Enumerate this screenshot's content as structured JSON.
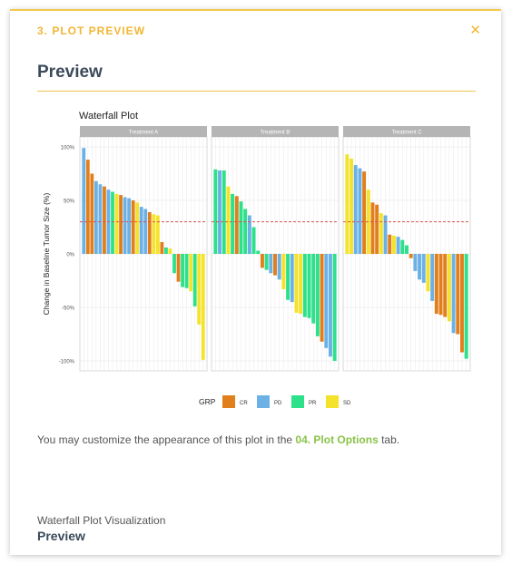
{
  "panel": {
    "header": "3. PLOT PREVIEW",
    "close_icon": "x-close-icon",
    "title": "Preview"
  },
  "message": {
    "before": "You may customize the appearance of this plot in the ",
    "link": "04. Plot Options",
    "after": " tab."
  },
  "footer": {
    "caption": "Waterfall Plot Visualization",
    "title": "Preview"
  },
  "chart_data": {
    "type": "bar",
    "title": "Waterfall Plot",
    "ylabel": "Change in Baseline Tumor Size (%)",
    "xlabel": "",
    "ylim": [
      -100,
      100
    ],
    "yticks": [
      100,
      50,
      0,
      -50,
      -100
    ],
    "ytick_labels": [
      "100%",
      "50%",
      "0%",
      "-50%",
      "-100%"
    ],
    "reference_line": 30,
    "grid": true,
    "legend": {
      "title": "GRP",
      "position": "bottom",
      "entries": [
        {
          "name": "CR",
          "color": "#e07f1c"
        },
        {
          "name": "PD",
          "color": "#6cb1e6"
        },
        {
          "name": "PR",
          "color": "#2de08a"
        },
        {
          "name": "SD",
          "color": "#f5e22a"
        }
      ]
    },
    "colors": {
      "CR": "#e07f1c",
      "PD": "#6cb1e6",
      "PR": "#2de08a",
      "SD": "#f5e22a",
      "reference": "#d9534f",
      "strip": "#b5b5b5"
    },
    "panels": [
      {
        "name": "Treatment A",
        "bars": [
          {
            "value": 99,
            "grp": "PD"
          },
          {
            "value": 88,
            "grp": "CR"
          },
          {
            "value": 75,
            "grp": "CR"
          },
          {
            "value": 68,
            "grp": "PD"
          },
          {
            "value": 65,
            "grp": "PD"
          },
          {
            "value": 63,
            "grp": "CR"
          },
          {
            "value": 60,
            "grp": "PD"
          },
          {
            "value": 58,
            "grp": "PR"
          },
          {
            "value": 56,
            "grp": "SD"
          },
          {
            "value": 55,
            "grp": "CR"
          },
          {
            "value": 53,
            "grp": "PD"
          },
          {
            "value": 52,
            "grp": "PD"
          },
          {
            "value": 50,
            "grp": "CR"
          },
          {
            "value": 48,
            "grp": "SD"
          },
          {
            "value": 44,
            "grp": "PD"
          },
          {
            "value": 42,
            "grp": "PD"
          },
          {
            "value": 39,
            "grp": "CR"
          },
          {
            "value": 37,
            "grp": "SD"
          },
          {
            "value": 36,
            "grp": "SD"
          },
          {
            "value": 11,
            "grp": "CR"
          },
          {
            "value": 6,
            "grp": "PR"
          },
          {
            "value": 5,
            "grp": "SD"
          },
          {
            "value": -18,
            "grp": "PR"
          },
          {
            "value": -26,
            "grp": "CR"
          },
          {
            "value": -31,
            "grp": "PR"
          },
          {
            "value": -32,
            "grp": "PR"
          },
          {
            "value": -35,
            "grp": "SD"
          },
          {
            "value": -49,
            "grp": "PR"
          },
          {
            "value": -66,
            "grp": "SD"
          },
          {
            "value": -99,
            "grp": "SD"
          }
        ]
      },
      {
        "name": "Treatment B",
        "bars": [
          {
            "value": 79,
            "grp": "PR"
          },
          {
            "value": 78,
            "grp": "PD"
          },
          {
            "value": 78,
            "grp": "PR"
          },
          {
            "value": 63,
            "grp": "SD"
          },
          {
            "value": 56,
            "grp": "PR"
          },
          {
            "value": 54,
            "grp": "CR"
          },
          {
            "value": 49,
            "grp": "PR"
          },
          {
            "value": 42,
            "grp": "PR"
          },
          {
            "value": 36,
            "grp": "PD"
          },
          {
            "value": 25,
            "grp": "PR"
          },
          {
            "value": 3,
            "grp": "PR"
          },
          {
            "value": -13,
            "grp": "CR"
          },
          {
            "value": -15,
            "grp": "PR"
          },
          {
            "value": -18,
            "grp": "PD"
          },
          {
            "value": -20,
            "grp": "CR"
          },
          {
            "value": -24,
            "grp": "PD"
          },
          {
            "value": -33,
            "grp": "SD"
          },
          {
            "value": -43,
            "grp": "PR"
          },
          {
            "value": -45,
            "grp": "PD"
          },
          {
            "value": -55,
            "grp": "SD"
          },
          {
            "value": -56,
            "grp": "SD"
          },
          {
            "value": -59,
            "grp": "PR"
          },
          {
            "value": -60,
            "grp": "PR"
          },
          {
            "value": -65,
            "grp": "PR"
          },
          {
            "value": -77,
            "grp": "PR"
          },
          {
            "value": -82,
            "grp": "CR"
          },
          {
            "value": -88,
            "grp": "PD"
          },
          {
            "value": -96,
            "grp": "PD"
          },
          {
            "value": -100,
            "grp": "PR"
          }
        ]
      },
      {
        "name": "Treatment C",
        "bars": [
          {
            "value": 93,
            "grp": "SD"
          },
          {
            "value": 89,
            "grp": "SD"
          },
          {
            "value": 83,
            "grp": "PD"
          },
          {
            "value": 80,
            "grp": "PD"
          },
          {
            "value": 77,
            "grp": "CR"
          },
          {
            "value": 60,
            "grp": "SD"
          },
          {
            "value": 48,
            "grp": "CR"
          },
          {
            "value": 46,
            "grp": "CR"
          },
          {
            "value": 38,
            "grp": "SD"
          },
          {
            "value": 36,
            "grp": "PD"
          },
          {
            "value": 18,
            "grp": "CR"
          },
          {
            "value": 17,
            "grp": "SD"
          },
          {
            "value": 16,
            "grp": "PD"
          },
          {
            "value": 13,
            "grp": "PR"
          },
          {
            "value": 8,
            "grp": "PR"
          },
          {
            "value": -4,
            "grp": "CR"
          },
          {
            "value": -16,
            "grp": "PD"
          },
          {
            "value": -24,
            "grp": "PD"
          },
          {
            "value": -27,
            "grp": "PD"
          },
          {
            "value": -35,
            "grp": "SD"
          },
          {
            "value": -44,
            "grp": "PD"
          },
          {
            "value": -56,
            "grp": "CR"
          },
          {
            "value": -57,
            "grp": "CR"
          },
          {
            "value": -59,
            "grp": "CR"
          },
          {
            "value": -63,
            "grp": "SD"
          },
          {
            "value": -74,
            "grp": "PD"
          },
          {
            "value": -75,
            "grp": "CR"
          },
          {
            "value": -92,
            "grp": "CR"
          },
          {
            "value": -98,
            "grp": "PR"
          }
        ]
      }
    ]
  }
}
